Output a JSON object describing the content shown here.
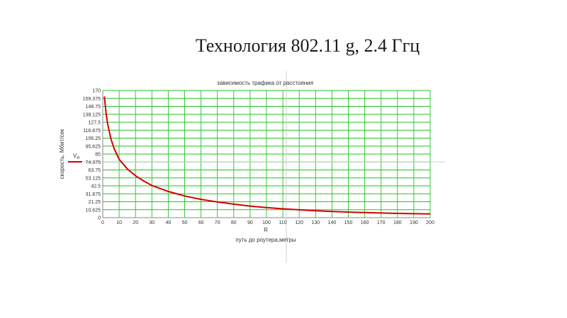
{
  "slide": {
    "title": "Технология 802.11 g, 2.4 Ггц"
  },
  "chart_data": {
    "type": "line",
    "title": "зависимость трафика  от расстояния",
    "xlabel": "путь до роутера,метры",
    "x_var": "R",
    "ylabel": "скорость, Мбит/сек",
    "y_var": "V",
    "y_var_subscript": "R",
    "xlim": [
      0,
      200
    ],
    "ylim": [
      0,
      170
    ],
    "x_ticks": [
      0,
      10,
      20,
      30,
      40,
      50,
      60,
      70,
      80,
      90,
      100,
      110,
      120,
      130,
      140,
      150,
      160,
      170,
      180,
      190,
      200
    ],
    "y_ticks": [
      "0",
      "10.625",
      "21.25",
      "31.875",
      "42.5",
      "53.125",
      "63.75",
      "74.375",
      "85",
      "95.625",
      "106.25",
      "116.875",
      "127.5",
      "138.125",
      "148.75",
      "159.375",
      "170"
    ],
    "grid": true,
    "colors": {
      "series": "#d40000",
      "grid": "#22c422",
      "axis": "#888888",
      "crosshair": "#d0d0d0"
    },
    "series": [
      {
        "x": [
          1,
          2,
          3,
          5,
          7,
          10,
          15,
          20,
          25,
          30,
          40,
          50,
          60,
          70,
          80,
          90,
          100,
          110,
          120,
          130,
          140,
          150,
          160,
          170,
          180,
          190,
          200
        ],
        "y": [
          162,
          140,
          125,
          105,
          92,
          78,
          65,
          56,
          49,
          43,
          35,
          29,
          24.5,
          21,
          18,
          15.5,
          13.5,
          11.8,
          10.5,
          9.3,
          8.3,
          7.5,
          6.8,
          6.2,
          5.7,
          5.3,
          5
        ]
      }
    ]
  }
}
